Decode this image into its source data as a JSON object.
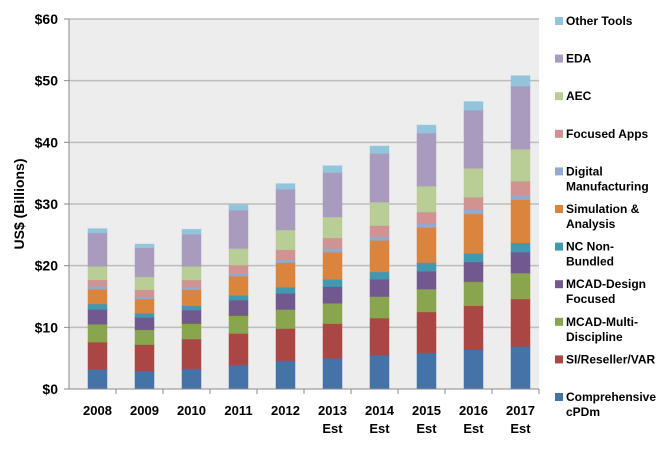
{
  "chart_data": {
    "type": "bar",
    "stacked": true,
    "title": "",
    "xlabel": "",
    "ylabel": "US$ (Billions)",
    "ylim": [
      0,
      60
    ],
    "yticks": [
      "$0",
      "$10",
      "$20",
      "$30",
      "$40",
      "$50",
      "$60"
    ],
    "ytick_values": [
      0,
      10,
      20,
      30,
      40,
      50,
      60
    ],
    "grid": true,
    "legend_position": "right",
    "categories": [
      [
        "2008"
      ],
      [
        "2009"
      ],
      [
        "2010"
      ],
      [
        "2011"
      ],
      [
        "2012"
      ],
      [
        "2013",
        "Est"
      ],
      [
        "2014",
        "Est"
      ],
      [
        "2015",
        "Est"
      ],
      [
        "2016",
        "Est"
      ],
      [
        "2017",
        "Est"
      ]
    ],
    "series": [
      {
        "name": "Comprehensive cPDm",
        "legend_lines": [
          "Comprehensive",
          "cPDm"
        ],
        "color": "#4572A7",
        "values": [
          3.2,
          2.9,
          3.3,
          3.9,
          4.6,
          5.0,
          5.5,
          5.9,
          6.4,
          6.9
        ]
      },
      {
        "name": "SI/Reseller/VAR",
        "legend_lines": [
          "SI/Reseller/VAR"
        ],
        "color": "#AA4643",
        "values": [
          4.4,
          4.3,
          4.8,
          5.1,
          5.2,
          5.6,
          6.0,
          6.6,
          7.1,
          7.7
        ]
      },
      {
        "name": "MCAD-Multi-Discipline",
        "legend_lines": [
          "MCAD-Multi-",
          "Discipline"
        ],
        "color": "#89A54E",
        "values": [
          2.9,
          2.4,
          2.5,
          2.9,
          3.1,
          3.3,
          3.5,
          3.7,
          3.9,
          4.2
        ]
      },
      {
        "name": "MCAD-Design Focused",
        "legend_lines": [
          "MCAD-Design",
          "Focused"
        ],
        "color": "#71588F",
        "values": [
          2.4,
          2.0,
          2.2,
          2.5,
          2.6,
          2.7,
          2.8,
          2.9,
          3.2,
          3.4
        ]
      },
      {
        "name": "NC Non-Bundled",
        "legend_lines": [
          "NC Non-",
          "Bundled"
        ],
        "color": "#4198AF",
        "values": [
          0.9,
          0.7,
          0.7,
          0.8,
          1.0,
          1.2,
          1.2,
          1.4,
          1.4,
          1.5
        ]
      },
      {
        "name": "Simulation & Analysis",
        "legend_lines": [
          "Simulation &",
          "Analysis"
        ],
        "color": "#DB843D",
        "values": [
          2.4,
          2.3,
          2.6,
          3.1,
          4.0,
          4.4,
          5.1,
          5.7,
          6.4,
          7.0
        ]
      },
      {
        "name": "Digital Manufacturing",
        "legend_lines": [
          "Digital",
          "Manufacturing"
        ],
        "color": "#93A9CF",
        "values": [
          0.5,
          0.4,
          0.4,
          0.4,
          0.5,
          0.6,
          0.6,
          0.6,
          0.7,
          0.7
        ]
      },
      {
        "name": "Focused Apps",
        "legend_lines": [
          "Focused Apps"
        ],
        "color": "#D19392",
        "values": [
          1.0,
          1.1,
          1.2,
          1.4,
          1.6,
          1.7,
          1.8,
          1.9,
          2.0,
          2.3
        ]
      },
      {
        "name": "AEC",
        "legend_lines": [
          "AEC"
        ],
        "color": "#B9CD96",
        "values": [
          2.2,
          2.1,
          2.2,
          2.7,
          3.2,
          3.4,
          3.8,
          4.2,
          4.7,
          5.2
        ]
      },
      {
        "name": "EDA",
        "legend_lines": [
          "EDA"
        ],
        "color": "#A99BBD",
        "values": [
          5.4,
          4.7,
          5.2,
          6.2,
          6.6,
          7.2,
          7.9,
          8.6,
          9.4,
          10.2
        ]
      },
      {
        "name": "Other Tools",
        "legend_lines": [
          "Other Tools"
        ],
        "color": "#92C5DC",
        "values": [
          0.7,
          0.6,
          0.8,
          0.9,
          0.9,
          1.1,
          1.2,
          1.3,
          1.4,
          1.7
        ]
      }
    ]
  }
}
